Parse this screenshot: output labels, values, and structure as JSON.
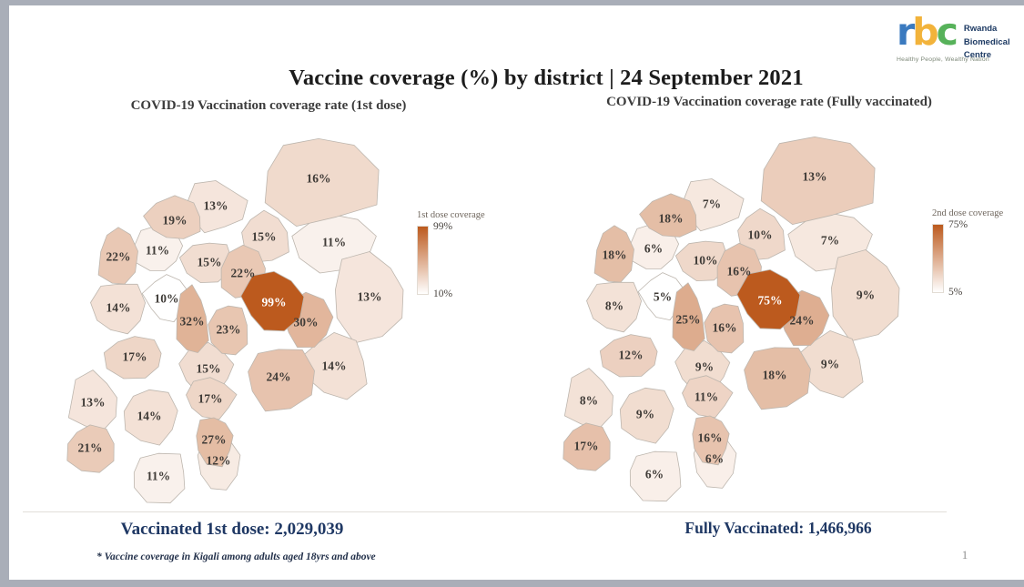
{
  "slide": {
    "title": "Vaccine coverage (%) by district | 24 September 2021",
    "footnote": "* Vaccine coverage in Kigali among adults aged 18yrs and above",
    "page_number": "1"
  },
  "logo": {
    "letters": [
      {
        "ch": "r",
        "color": "#3a7abf"
      },
      {
        "ch": "b",
        "color": "#f2b33b"
      },
      {
        "ch": "c",
        "color": "#57b25a"
      }
    ],
    "org_lines": [
      "Rwanda",
      "Biomedical",
      "Centre"
    ],
    "tagline": "Healthy People, Wealthy Nation"
  },
  "chart_data": [
    {
      "type": "choropleth_map",
      "region": "Rwanda districts",
      "title": "COVID-19 Vaccination coverage rate (1st dose)",
      "legend_title": "1st dose coverage",
      "unit": "percent",
      "scale": {
        "min": 10,
        "max": 99,
        "min_label": "10%",
        "max_label": "99%",
        "low_color": "#ffffff",
        "high_color": "#bc5a1e"
      },
      "district_values_pct": [
        16,
        13,
        19,
        22,
        11,
        15,
        15,
        22,
        11,
        13,
        14,
        10,
        32,
        23,
        99,
        30,
        17,
        15,
        24,
        14,
        13,
        14,
        17,
        27,
        21,
        12,
        11
      ],
      "total_label": "Vaccinated 1st dose: 2,029,039",
      "total_value": "2,029,039"
    },
    {
      "type": "choropleth_map",
      "region": "Rwanda districts",
      "title": "COVID-19 Vaccination coverage rate (Fully vaccinated)",
      "legend_title": "2nd dose coverage",
      "unit": "percent",
      "scale": {
        "min": 5,
        "max": 75,
        "min_label": "5%",
        "max_label": "75%",
        "low_color": "#ffffff",
        "high_color": "#bc5a1e"
      },
      "district_values_pct": [
        13,
        7,
        18,
        18,
        6,
        10,
        10,
        16,
        7,
        9,
        8,
        5,
        25,
        16,
        75,
        24,
        12,
        9,
        18,
        9,
        8,
        9,
        11,
        16,
        17,
        6,
        6
      ],
      "total_label": "Fully Vaccinated: 1,466,966",
      "total_value": "1,466,966"
    }
  ]
}
